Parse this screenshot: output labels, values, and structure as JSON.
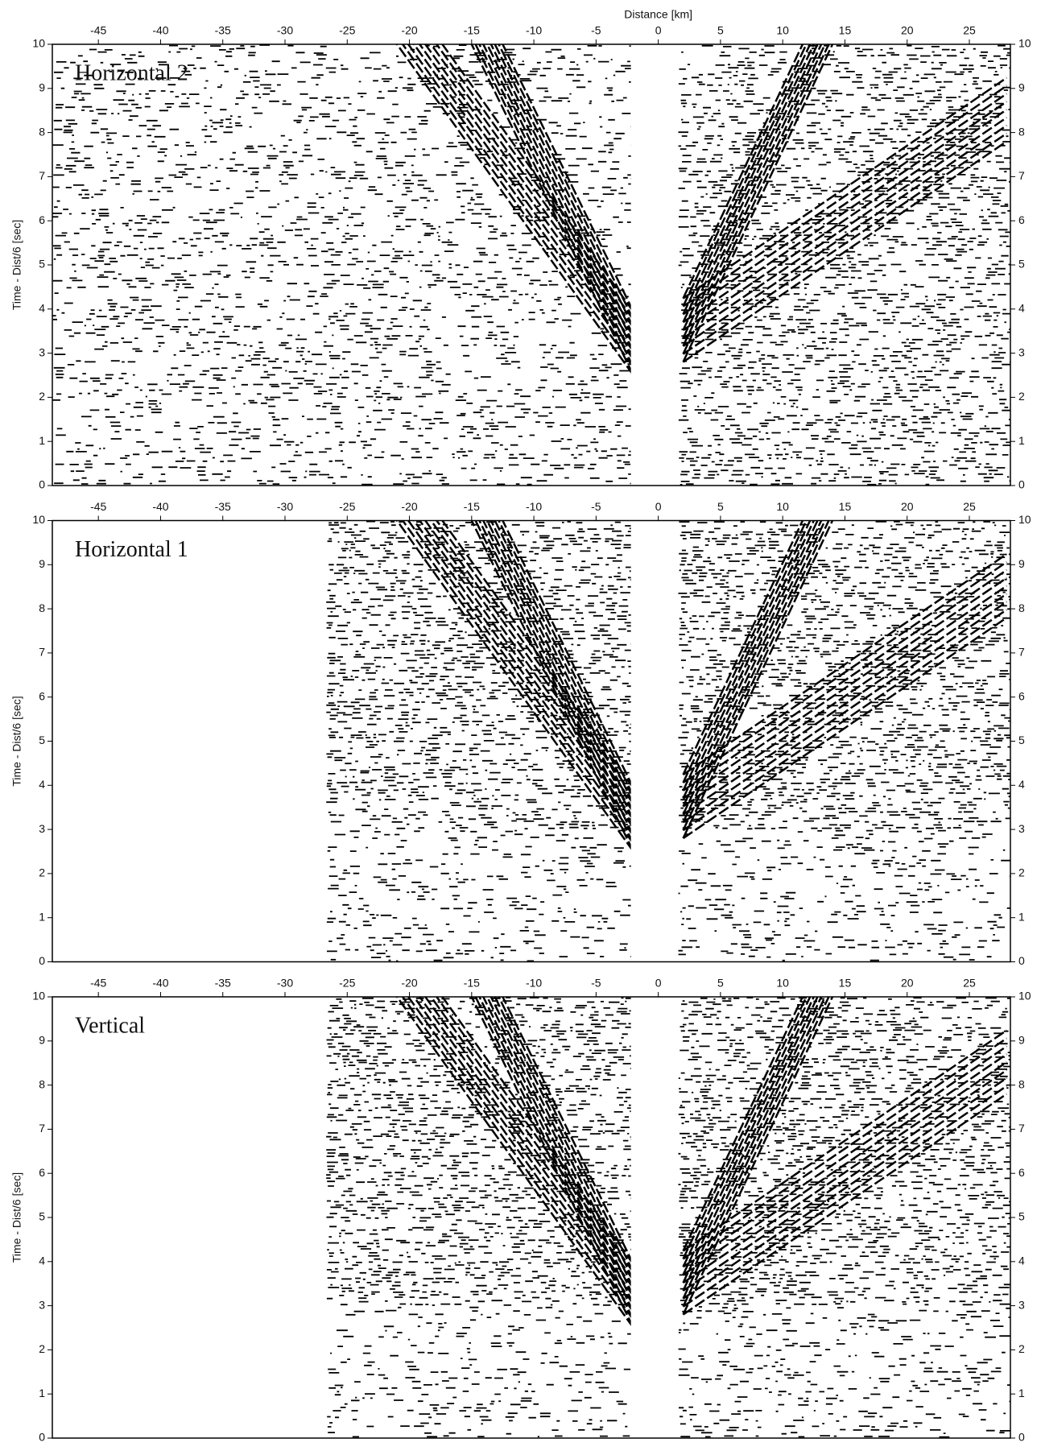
{
  "chart_data": [
    {
      "type": "record-section",
      "label": "Horizontal 2",
      "xlabel": "Distance [km]",
      "ylabel": "Time - Dist/6 [sec]",
      "xlim": [
        -48.7,
        28.3
      ],
      "ylim": [
        0,
        10
      ],
      "xticks": [
        -45,
        -40,
        -35,
        -30,
        -25,
        -20,
        -15,
        -10,
        -5,
        0,
        5,
        10,
        15,
        20,
        25
      ],
      "yticks": [
        0,
        1,
        2,
        3,
        4,
        5,
        6,
        7,
        8,
        9,
        10
      ],
      "trace_extent": [
        [
          -48.7,
          -2.2
        ],
        [
          1.6,
          28.3
        ]
      ]
    },
    {
      "type": "record-section",
      "label": "Horizontal 1",
      "ylabel": "Time - Dist/6 [sec]",
      "xlim": [
        -48.7,
        28.3
      ],
      "ylim": [
        0,
        10
      ],
      "xticks": [
        -45,
        -40,
        -35,
        -30,
        -25,
        -20,
        -15,
        -10,
        -5,
        0,
        5,
        10,
        15,
        20,
        25
      ],
      "yticks": [
        0,
        1,
        2,
        3,
        4,
        5,
        6,
        7,
        8,
        9,
        10
      ],
      "trace_extent": [
        [
          -26.7,
          -2.2
        ],
        [
          1.6,
          28.3
        ]
      ]
    },
    {
      "type": "record-section",
      "label": "Vertical",
      "ylabel": "Time - Dist/6 [sec]",
      "xlim": [
        -48.7,
        28.3
      ],
      "ylim": [
        0,
        10
      ],
      "xticks": [
        -45,
        -40,
        -35,
        -30,
        -25,
        -20,
        -15,
        -10,
        -5,
        0,
        5,
        10,
        15,
        20,
        25
      ],
      "yticks": [
        0,
        1,
        2,
        3,
        4,
        5,
        6,
        7,
        8,
        9,
        10
      ],
      "trace_extent": [
        [
          -26.7,
          -2.2
        ],
        [
          1.6,
          28.3
        ]
      ]
    }
  ]
}
